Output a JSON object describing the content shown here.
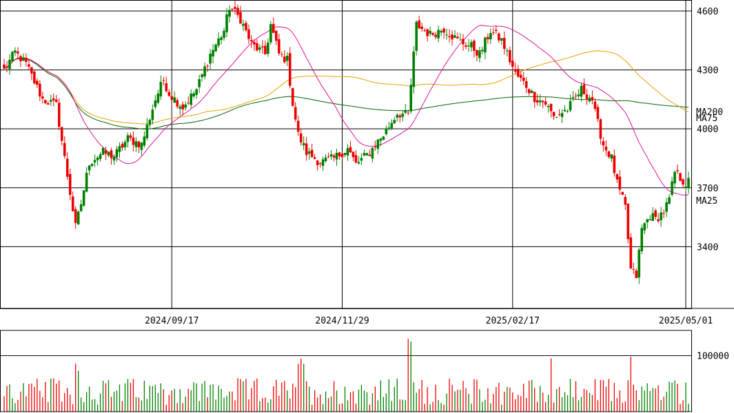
{
  "chart_data": {
    "type": "candlestick",
    "price_axis": {
      "ticks": [
        3400,
        3700,
        4000,
        4300,
        4600
      ],
      "tick_labels": [
        "3400",
        "3700",
        "4000",
        "4300",
        "4600"
      ],
      "range": [
        3100,
        4670
      ]
    },
    "date_axis": {
      "labels": [
        "2024/09/17",
        "2024/11/29",
        "2025/02/17",
        "2025/05/01"
      ]
    },
    "volume_axis": {
      "ticks": [
        100000
      ],
      "tick_labels": [
        "100000"
      ],
      "range": [
        0,
        145000
      ]
    },
    "moving_averages": [
      {
        "name": "MA200",
        "color": "#006400",
        "end_value": 4110
      },
      {
        "name": "MA75",
        "color": "#e6a000",
        "end_value": 4085
      },
      {
        "name": "MA25",
        "color": "#dd1199",
        "end_value": 3665
      }
    ],
    "colors": {
      "up": "#008000",
      "down": "#ee0000",
      "grid": "#000000"
    },
    "anchors": [
      [
        0,
        4300
      ],
      [
        4,
        4390
      ],
      [
        8,
        4330
      ],
      [
        14,
        4150
      ],
      [
        19,
        4120
      ],
      [
        22,
        3850
      ],
      [
        26,
        3500
      ],
      [
        28,
        3620
      ],
      [
        31,
        3830
      ],
      [
        36,
        3880
      ],
      [
        40,
        3860
      ],
      [
        45,
        3950
      ],
      [
        50,
        3920
      ],
      [
        55,
        4150
      ],
      [
        58,
        4250
      ],
      [
        60,
        4180
      ],
      [
        65,
        4110
      ],
      [
        70,
        4200
      ],
      [
        75,
        4380
      ],
      [
        80,
        4500
      ],
      [
        82,
        4620
      ],
      [
        86,
        4560
      ],
      [
        90,
        4430
      ],
      [
        95,
        4380
      ],
      [
        97,
        4530
      ],
      [
        100,
        4380
      ],
      [
        103,
        4350
      ],
      [
        105,
        4130
      ],
      [
        107,
        3970
      ],
      [
        110,
        3880
      ],
      [
        115,
        3830
      ],
      [
        120,
        3850
      ],
      [
        125,
        3900
      ],
      [
        128,
        3820
      ],
      [
        133,
        3880
      ],
      [
        135,
        3920
      ],
      [
        138,
        3970
      ],
      [
        143,
        4080
      ],
      [
        147,
        4070
      ],
      [
        150,
        4530
      ],
      [
        155,
        4480
      ],
      [
        160,
        4510
      ],
      [
        165,
        4450
      ],
      [
        170,
        4420
      ],
      [
        173,
        4380
      ],
      [
        177,
        4500
      ],
      [
        181,
        4450
      ],
      [
        184,
        4350
      ],
      [
        186,
        4280
      ],
      [
        190,
        4220
      ],
      [
        193,
        4160
      ],
      [
        197,
        4130
      ],
      [
        200,
        4060
      ],
      [
        205,
        4100
      ],
      [
        210,
        4200
      ],
      [
        214,
        4150
      ],
      [
        215,
        4080
      ],
      [
        218,
        3920
      ],
      [
        221,
        3850
      ],
      [
        223,
        3720
      ],
      [
        226,
        3600
      ],
      [
        228,
        3280
      ],
      [
        230,
        3250
      ],
      [
        232,
        3490
      ],
      [
        235,
        3560
      ],
      [
        237,
        3540
      ],
      [
        240,
        3580
      ],
      [
        242,
        3640
      ],
      [
        244,
        3780
      ],
      [
        248,
        3720
      ],
      [
        249,
        3730
      ]
    ],
    "gap_dates": [
      222,
      223,
      224
    ],
    "bar_count": 250
  }
}
